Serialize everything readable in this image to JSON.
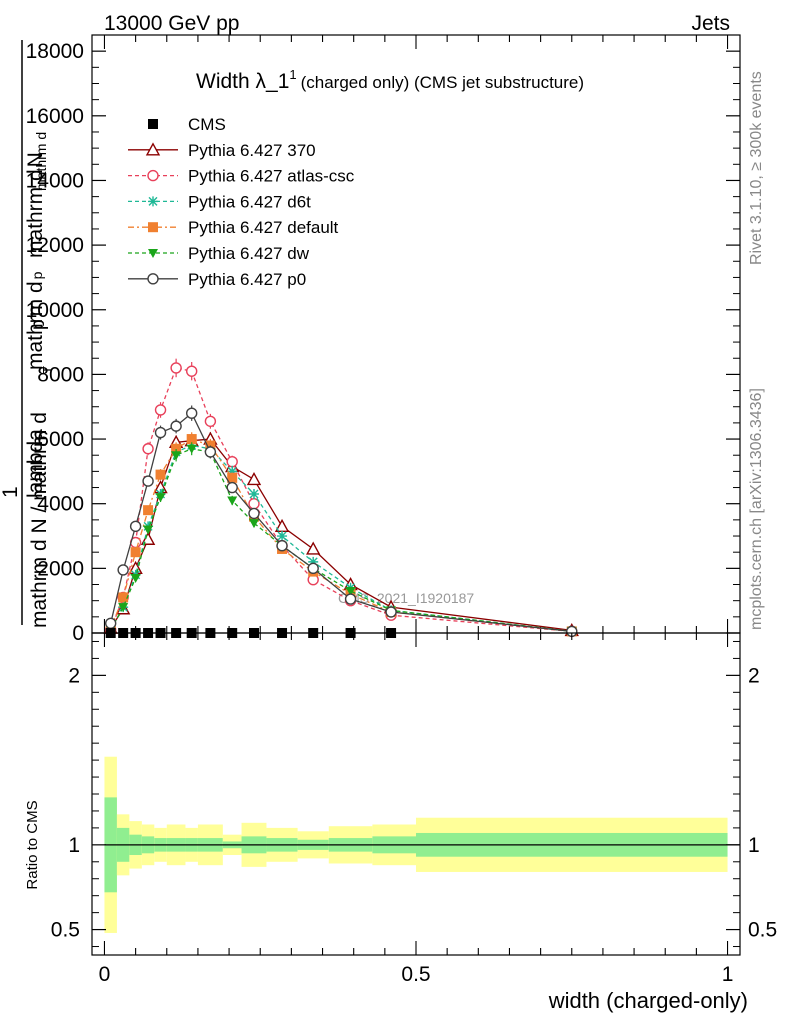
{
  "header": {
    "left": "13000 GeV pp",
    "right": "Jets"
  },
  "side_labels": {
    "rivet": "Rivet 3.1.10, ≥ 300k events",
    "mcplots": "mcplots.cern.ch [arXiv:1306.3436]"
  },
  "watermark": "CMS_2021_I1920187",
  "chart_data": [
    {
      "type": "line",
      "panel": "main",
      "title_main": "Width λ_1",
      "title_sup": "1",
      "title_rest": "(charged only) (CMS jet substructure)",
      "ylabel": {
        "numer_1": "mathrm d",
        "numer_2": "N",
        "numer_3": "mathrm d",
        "numer_4": "p",
        "numer_5": "mathrm d",
        "numer_6": "lambda",
        "denom_1": "1",
        "denom_2": "mathrm d N / mathrm d",
        "denom_3": "p",
        "denom_4": "T"
      },
      "xlim": [
        -0.02,
        1.02
      ],
      "ylim": [
        0,
        18500
      ],
      "y_ticks": [
        0,
        2000,
        4000,
        6000,
        8000,
        10000,
        12000,
        14000,
        16000,
        18000
      ],
      "y_tick_labels": [
        "0",
        "2000",
        "4000",
        "6000",
        "8000",
        "10000",
        "12000",
        "14000",
        "16000",
        "18000"
      ],
      "legend_position": "top-left",
      "cms": {
        "name": "CMS",
        "x": [
          0.01,
          0.03,
          0.05,
          0.07,
          0.09,
          0.115,
          0.14,
          0.17,
          0.205,
          0.24,
          0.285,
          0.335,
          0.395,
          0.46
        ],
        "y": [
          0,
          0,
          0,
          0,
          0,
          0,
          0,
          0,
          0,
          0,
          0,
          0,
          0,
          0
        ]
      },
      "series": [
        {
          "name": "Pythia 6.427 370",
          "color": "#8b0000",
          "dash": "",
          "marker": "triangle-open",
          "x": [
            0.01,
            0.03,
            0.05,
            0.07,
            0.09,
            0.115,
            0.14,
            0.17,
            0.205,
            0.24,
            0.285,
            0.335,
            0.395,
            0.46,
            0.75
          ],
          "y": [
            150,
            750,
            2000,
            2900,
            4500,
            5900,
            5950,
            6000,
            5150,
            4750,
            3300,
            2600,
            1500,
            800,
            80
          ]
        },
        {
          "name": "Pythia 6.427 atlas-csc",
          "color": "#e8405a",
          "dash": "4,3",
          "marker": "circle-open",
          "x": [
            0.01,
            0.03,
            0.05,
            0.07,
            0.09,
            0.115,
            0.14,
            0.17,
            0.205,
            0.24,
            0.285,
            0.335,
            0.395,
            0.46,
            0.75
          ],
          "y": [
            100,
            1100,
            2800,
            5700,
            6900,
            8200,
            8100,
            6550,
            5300,
            4000,
            2700,
            1650,
            1000,
            550,
            50
          ]
        },
        {
          "name": "Pythia 6.427 d6t",
          "color": "#1fb896",
          "dash": "4,3",
          "marker": "star",
          "x": [
            0.01,
            0.03,
            0.05,
            0.07,
            0.09,
            0.115,
            0.14,
            0.17,
            0.205,
            0.24,
            0.285,
            0.335,
            0.395,
            0.46,
            0.75
          ],
          "y": [
            100,
            800,
            1800,
            3300,
            4300,
            5600,
            5800,
            5700,
            5000,
            4300,
            3000,
            2200,
            1400,
            700,
            50
          ]
        },
        {
          "name": "Pythia 6.427 default",
          "color": "#f08030",
          "dash": "6,3,2,3",
          "marker": "square",
          "x": [
            0.01,
            0.03,
            0.05,
            0.07,
            0.09,
            0.115,
            0.14,
            0.17,
            0.205,
            0.24,
            0.285,
            0.335,
            0.395,
            0.46,
            0.75
          ],
          "y": [
            150,
            1100,
            2500,
            3800,
            4900,
            5700,
            6000,
            5800,
            4800,
            3600,
            2600,
            1900,
            1200,
            650,
            50
          ]
        },
        {
          "name": "Pythia 6.427 dw",
          "color": "#1aa51a",
          "dash": "4,3",
          "marker": "triangle-down",
          "x": [
            0.01,
            0.03,
            0.05,
            0.07,
            0.09,
            0.115,
            0.14,
            0.17,
            0.205,
            0.24,
            0.285,
            0.335,
            0.395,
            0.46,
            0.75
          ],
          "y": [
            100,
            800,
            1700,
            3200,
            4200,
            5500,
            5700,
            5600,
            4100,
            3400,
            2700,
            2000,
            1300,
            700,
            50
          ]
        },
        {
          "name": "Pythia 6.427 p0",
          "color": "#404040",
          "dash": "",
          "marker": "circle-open",
          "x": [
            0.01,
            0.03,
            0.05,
            0.07,
            0.09,
            0.115,
            0.14,
            0.17,
            0.205,
            0.24,
            0.285,
            0.335,
            0.395,
            0.46,
            0.75
          ],
          "y": [
            300,
            1950,
            3300,
            4700,
            6200,
            6400,
            6800,
            5600,
            4500,
            3700,
            2700,
            2000,
            1050,
            650,
            50
          ]
        }
      ]
    },
    {
      "type": "area",
      "panel": "ratio",
      "ylabel": "Ratio to CMS",
      "xlabel": "width (charged-only)",
      "xlim": [
        -0.02,
        1.02
      ],
      "ylim": [
        0.35,
        2.25
      ],
      "y_ticks": [
        0.5,
        1,
        2
      ],
      "y_tick_labels": [
        "0.5",
        "1",
        "2"
      ],
      "x_ticks": [
        0,
        0.5,
        1
      ],
      "x_tick_labels": [
        "0",
        "0.5",
        "1"
      ],
      "band_colors": {
        "stat": "#90ee90",
        "total": "#ffff99"
      },
      "bins": [
        {
          "lo": 0.0,
          "hi": 0.02,
          "stat": 0.28,
          "total": 0.52
        },
        {
          "lo": 0.02,
          "hi": 0.04,
          "stat": 0.1,
          "total": 0.18
        },
        {
          "lo": 0.04,
          "hi": 0.06,
          "stat": 0.06,
          "total": 0.14
        },
        {
          "lo": 0.06,
          "hi": 0.08,
          "stat": 0.05,
          "total": 0.12
        },
        {
          "lo": 0.08,
          "hi": 0.1,
          "stat": 0.04,
          "total": 0.1
        },
        {
          "lo": 0.1,
          "hi": 0.13,
          "stat": 0.04,
          "total": 0.12
        },
        {
          "lo": 0.13,
          "hi": 0.15,
          "stat": 0.04,
          "total": 0.1
        },
        {
          "lo": 0.15,
          "hi": 0.19,
          "stat": 0.04,
          "total": 0.12
        },
        {
          "lo": 0.19,
          "hi": 0.22,
          "stat": 0.02,
          "total": 0.06
        },
        {
          "lo": 0.22,
          "hi": 0.26,
          "stat": 0.05,
          "total": 0.13
        },
        {
          "lo": 0.26,
          "hi": 0.31,
          "stat": 0.04,
          "total": 0.1
        },
        {
          "lo": 0.31,
          "hi": 0.36,
          "stat": 0.03,
          "total": 0.08
        },
        {
          "lo": 0.36,
          "hi": 0.43,
          "stat": 0.04,
          "total": 0.11
        },
        {
          "lo": 0.43,
          "hi": 0.5,
          "stat": 0.05,
          "total": 0.12
        },
        {
          "lo": 0.5,
          "hi": 1.0,
          "stat": 0.07,
          "total": 0.16
        }
      ]
    }
  ]
}
